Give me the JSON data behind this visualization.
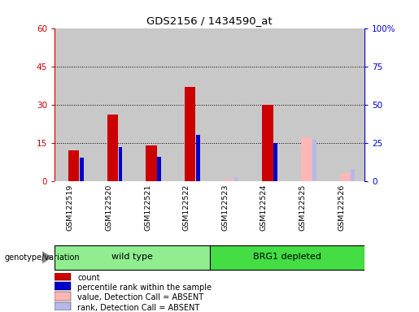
{
  "title": "GDS2156 / 1434590_at",
  "samples": [
    "GSM122519",
    "GSM122520",
    "GSM122521",
    "GSM122522",
    "GSM122523",
    "GSM122524",
    "GSM122525",
    "GSM122526"
  ],
  "count_values": [
    12,
    26,
    14,
    37,
    null,
    30,
    null,
    null
  ],
  "rank_values": [
    15,
    22,
    16,
    30,
    null,
    25,
    null,
    null
  ],
  "count_absent": [
    null,
    null,
    null,
    null,
    0.7,
    null,
    17,
    3
  ],
  "rank_absent": [
    null,
    null,
    null,
    null,
    1.8,
    null,
    27,
    8
  ],
  "groups": [
    {
      "label": "wild type",
      "start": 0,
      "end": 3
    },
    {
      "label": "BRG1 depleted",
      "start": 4,
      "end": 7
    }
  ],
  "group_colors": [
    "#90ee90",
    "#44dd44"
  ],
  "ylim_left": [
    0,
    60
  ],
  "ylim_right": [
    0,
    100
  ],
  "yticks_left": [
    0,
    15,
    30,
    45,
    60
  ],
  "yticks_right": [
    0,
    25,
    50,
    75,
    100
  ],
  "ytick_labels_right": [
    "0",
    "25",
    "50",
    "75",
    "100%"
  ],
  "bar_color_count": "#cc0000",
  "bar_color_rank": "#0000cc",
  "bar_color_absent_count": "#ffb6b6",
  "bar_color_absent_rank": "#b8b8e8",
  "col_bg": "#c8c8c8",
  "plot_bg": "#d3d3d3",
  "legend_items": [
    {
      "label": "count",
      "color": "#cc0000"
    },
    {
      "label": "percentile rank within the sample",
      "color": "#0000cc"
    },
    {
      "label": "value, Detection Call = ABSENT",
      "color": "#ffb6b6"
    },
    {
      "label": "rank, Detection Call = ABSENT",
      "color": "#b8b8e8"
    }
  ],
  "genotype_label": "genotype/variation"
}
